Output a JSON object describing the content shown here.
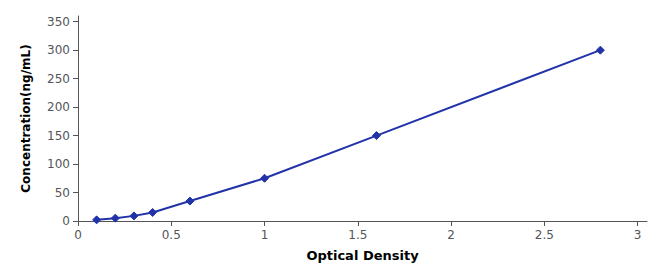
{
  "chart_data": {
    "type": "line",
    "xlabel": "Optical Density",
    "ylabel": "Concentration(ng/mL)",
    "x": [
      0.1,
      0.2,
      0.3,
      0.4,
      0.6,
      1.0,
      1.6,
      2.8
    ],
    "values": [
      2,
      5,
      9,
      15,
      35,
      75,
      150,
      300
    ],
    "color": "#2233aa",
    "marker": "diamond",
    "xlim": [
      0.0,
      3.05
    ],
    "ylim": [
      0,
      360
    ],
    "xticks": [
      0,
      0.5,
      1,
      1.5,
      2,
      2.5,
      3
    ],
    "yticks": [
      0,
      50,
      100,
      150,
      200,
      250,
      300,
      350
    ],
    "grid": false
  }
}
